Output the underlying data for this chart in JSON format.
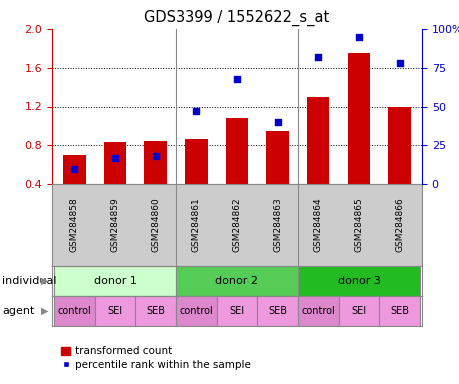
{
  "title": "GDS3399 / 1552622_s_at",
  "samples": [
    "GSM284858",
    "GSM284859",
    "GSM284860",
    "GSM284861",
    "GSM284862",
    "GSM284863",
    "GSM284864",
    "GSM284865",
    "GSM284866"
  ],
  "transformed_count": [
    0.7,
    0.83,
    0.84,
    0.86,
    1.08,
    0.95,
    1.3,
    1.75,
    1.2
  ],
  "percentile_rank": [
    10,
    17,
    18,
    47,
    68,
    40,
    82,
    95,
    78
  ],
  "bar_color": "#cc0000",
  "dot_color": "#0000cc",
  "ylim_left": [
    0.4,
    2.0
  ],
  "ylim_right": [
    0,
    100
  ],
  "yticks_left": [
    0.4,
    0.8,
    1.2,
    1.6,
    2.0
  ],
  "yticks_right": [
    0,
    25,
    50,
    75,
    100
  ],
  "ytick_labels_right": [
    "0",
    "25",
    "50",
    "75",
    "100%"
  ],
  "donors": [
    {
      "label": "donor 1",
      "start": 0,
      "end": 3,
      "color": "#ccffcc"
    },
    {
      "label": "donor 2",
      "start": 3,
      "end": 6,
      "color": "#55cc55"
    },
    {
      "label": "donor 3",
      "start": 6,
      "end": 9,
      "color": "#22bb22"
    }
  ],
  "agents": [
    "control",
    "SEI",
    "SEB",
    "control",
    "SEI",
    "SEB",
    "control",
    "SEI",
    "SEB"
  ],
  "agent_color_control": "#dd88cc",
  "agent_color_sei": "#ee99dd",
  "agent_color_seb": "#ee99dd",
  "legend_bar_label": "transformed count",
  "legend_dot_label": "percentile rank within the sample",
  "individual_label": "individual",
  "agent_label": "agent",
  "bg_color": "#ffffff",
  "plot_bg": "#ffffff",
  "tick_label_color_left": "#cc0000",
  "tick_label_color_right": "#0000cc",
  "sample_panel_color": "#cccccc",
  "divider_color": "#888888"
}
